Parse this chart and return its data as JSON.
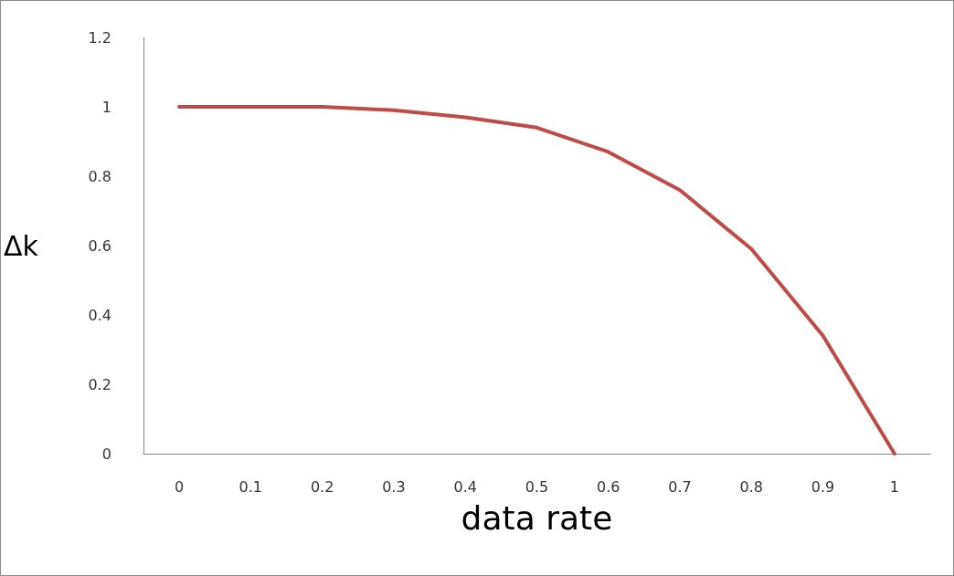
{
  "chart_data": {
    "type": "line",
    "xlabel": "data rate",
    "ylabel": "Δk",
    "categories": [
      "0",
      "0.1",
      "0.2",
      "0.3",
      "0.4",
      "0.5",
      "0.6",
      "0.7",
      "0.8",
      "0.9",
      "1"
    ],
    "series": [
      {
        "color": "#be4b48",
        "values": [
          1,
          1,
          1,
          0.99,
          0.97,
          0.94,
          0.87,
          0.76,
          0.59,
          0.34,
          0
        ]
      }
    ],
    "ylim": [
      0,
      1.2
    ],
    "yticks": [
      0,
      0.2,
      0.4,
      0.6,
      0.8,
      1,
      1.2
    ],
    "grid": false,
    "marker": "none",
    "line_style": "solid"
  }
}
